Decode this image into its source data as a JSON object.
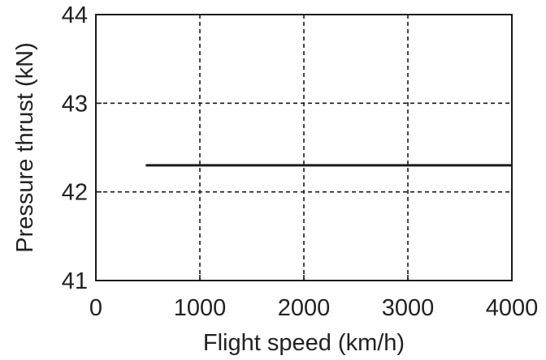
{
  "chart_data": {
    "type": "line",
    "title": "",
    "xlabel": "Flight speed (km/h)",
    "ylabel": "Pressure thrust (kN)",
    "xlim": [
      0,
      4000
    ],
    "ylim": [
      41,
      44
    ],
    "xticks": [
      0,
      1000,
      2000,
      3000,
      4000
    ],
    "yticks": [
      41,
      42,
      43,
      44
    ],
    "x_tick_labels": [
      "0",
      "1000",
      "2000",
      "3000",
      "4000"
    ],
    "y_tick_labels": [
      "41",
      "42",
      "43",
      "44"
    ],
    "grid": true,
    "legend": "none",
    "series": [
      {
        "x": [
          480,
          4000
        ],
        "y": [
          42.3,
          42.3
        ]
      }
    ],
    "colors": {
      "line": "#1a1a1a",
      "axis": "#1a1a1a",
      "grid": "#1a1a1a"
    }
  }
}
